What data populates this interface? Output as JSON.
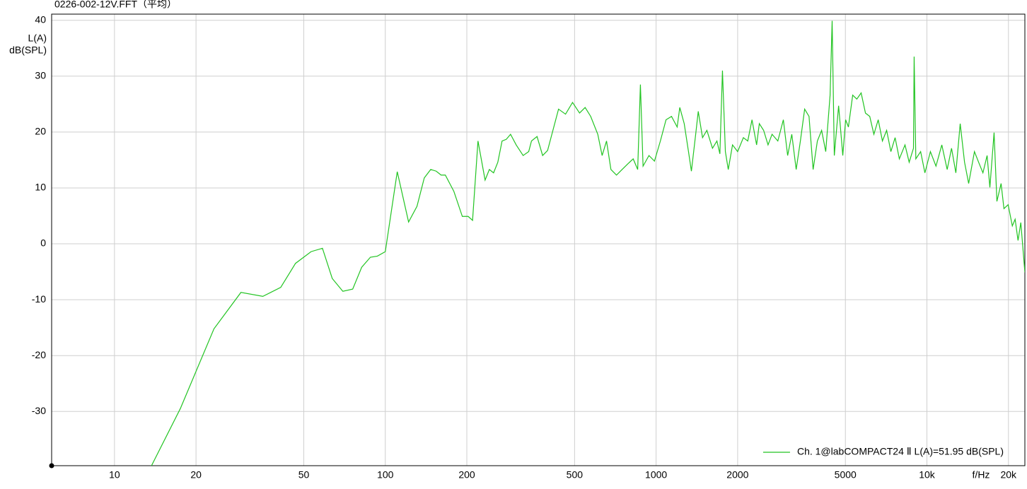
{
  "chart_data": {
    "type": "line",
    "title": "0226-002-12V.FFT（平均）",
    "y_label": [
      "L(A)",
      "dB(SPL)"
    ],
    "x_label": "f/Hz",
    "x_scale": "log",
    "xlim": [
      5.86,
      23000
    ],
    "ylim": [
      -39.7,
      41.1
    ],
    "xticks": [
      10,
      20,
      50,
      100,
      200,
      500,
      1000,
      2000,
      5000,
      {
        "value": 10000,
        "label": "10k"
      },
      {
        "value": 20000,
        "label": "20k"
      }
    ],
    "yticks": [
      40,
      30,
      20,
      10,
      0,
      -10,
      -20,
      -30
    ],
    "grid": true,
    "legend": "lower right",
    "x": [
      13.7,
      17.5,
      23.3,
      29.3,
      35.3,
      41.1,
      46.6,
      53.2,
      58.6,
      63.7,
      69.7,
      75.8,
      81.8,
      88.1,
      93.5,
      100,
      110.7,
      121.9,
      130.9,
      139.3,
      147.1,
      154.2,
      160.7,
      166.6,
      179.1,
      192.5,
      202.3,
      210,
      219.9,
      233.6,
      242.2,
      251.1,
      260.3,
      269.9,
      279.8,
      290.1,
      304.3,
      322.8,
      338.5,
      346.6,
      363.4,
      381,
      397.4,
      436.2,
      463,
      491.4,
      521.6,
      546.9,
      573.4,
      609,
      632,
      656,
      681,
      714,
      749,
      786,
      823,
      855,
      875,
      895,
      941,
      986,
      1037,
      1088,
      1140,
      1196,
      1223,
      1270,
      1317,
      1350,
      1400,
      1431,
      1484,
      1540,
      1615,
      1677,
      1720,
      1758,
      1802,
      1847,
      1915,
      2000,
      2100,
      2180,
      2260,
      2350,
      2405,
      2495,
      2590,
      2680,
      2815,
      2950,
      3060,
      3170,
      3290,
      3410,
      3536,
      3670,
      3800,
      3940,
      4085,
      4230,
      4390,
      4467,
      4550,
      4720,
      4890,
      5010,
      5130,
      5320,
      5510,
      5716,
      5930,
      6150,
      6370,
      6610,
      6850,
      7100,
      7360,
      7630,
      7910,
      8300,
      8600,
      8920,
      8970,
      9100,
      9480,
      9830,
      10300,
      10800,
      11350,
      11880,
      12330,
      12790,
      13270,
      13770,
      14260,
      14980,
      15520,
      16100,
      16680,
      17080,
      17700,
      18130,
      18790,
      19250,
      19950,
      20670,
      21170,
      21700,
      22220,
      23000
    ],
    "series": [
      {
        "name": "Ch. 1@labCOMPACT24 Ⅱ L(A)=51.95 dB(SPL)",
        "color": "#22c422",
        "values": [
          -39.7,
          -29.5,
          -15.2,
          -8.7,
          -9.4,
          -7.8,
          -3.5,
          -1.4,
          -0.8,
          -6.2,
          -8.5,
          -8.1,
          -4.2,
          -2.4,
          -2.2,
          -1.4,
          12.9,
          3.9,
          6.7,
          11.8,
          13.3,
          13.0,
          12.3,
          12.3,
          9.4,
          4.9,
          4.9,
          4.2,
          18.4,
          11.4,
          13.3,
          12.7,
          14.6,
          18.4,
          18.7,
          19.6,
          17.7,
          15.8,
          16.5,
          18.4,
          19.2,
          15.8,
          16.7,
          24.1,
          23.2,
          25.3,
          23.4,
          24.4,
          22.8,
          19.6,
          15.8,
          18.4,
          13.3,
          12.3,
          13.3,
          14.3,
          15.2,
          13.3,
          28.5,
          13.9,
          15.8,
          14.8,
          18.4,
          22.2,
          22.8,
          20.9,
          24.4,
          21.5,
          16.5,
          13.0,
          19.6,
          23.7,
          19.0,
          20.3,
          17.1,
          18.4,
          16.1,
          31.0,
          16.5,
          13.3,
          17.7,
          16.5,
          19.0,
          18.4,
          22.2,
          17.7,
          21.5,
          20.3,
          17.7,
          19.6,
          18.4,
          22.2,
          15.8,
          19.6,
          13.3,
          18.4,
          24.1,
          22.8,
          13.3,
          18.4,
          20.3,
          16.5,
          26.6,
          39.9,
          15.8,
          24.7,
          15.8,
          22.2,
          20.9,
          26.6,
          25.9,
          27.0,
          23.4,
          22.8,
          19.6,
          22.2,
          18.4,
          20.3,
          16.5,
          19.0,
          15.2,
          17.7,
          14.6,
          17.1,
          33.5,
          15.2,
          16.5,
          12.7,
          16.5,
          13.9,
          17.7,
          13.3,
          17.1,
          12.7,
          21.5,
          14.6,
          10.8,
          16.5,
          14.6,
          12.7,
          15.8,
          10.1,
          19.9,
          7.6,
          10.8,
          6.3,
          7.0,
          3.2,
          4.4,
          0.6,
          3.8,
          -5.1
        ]
      }
    ]
  }
}
